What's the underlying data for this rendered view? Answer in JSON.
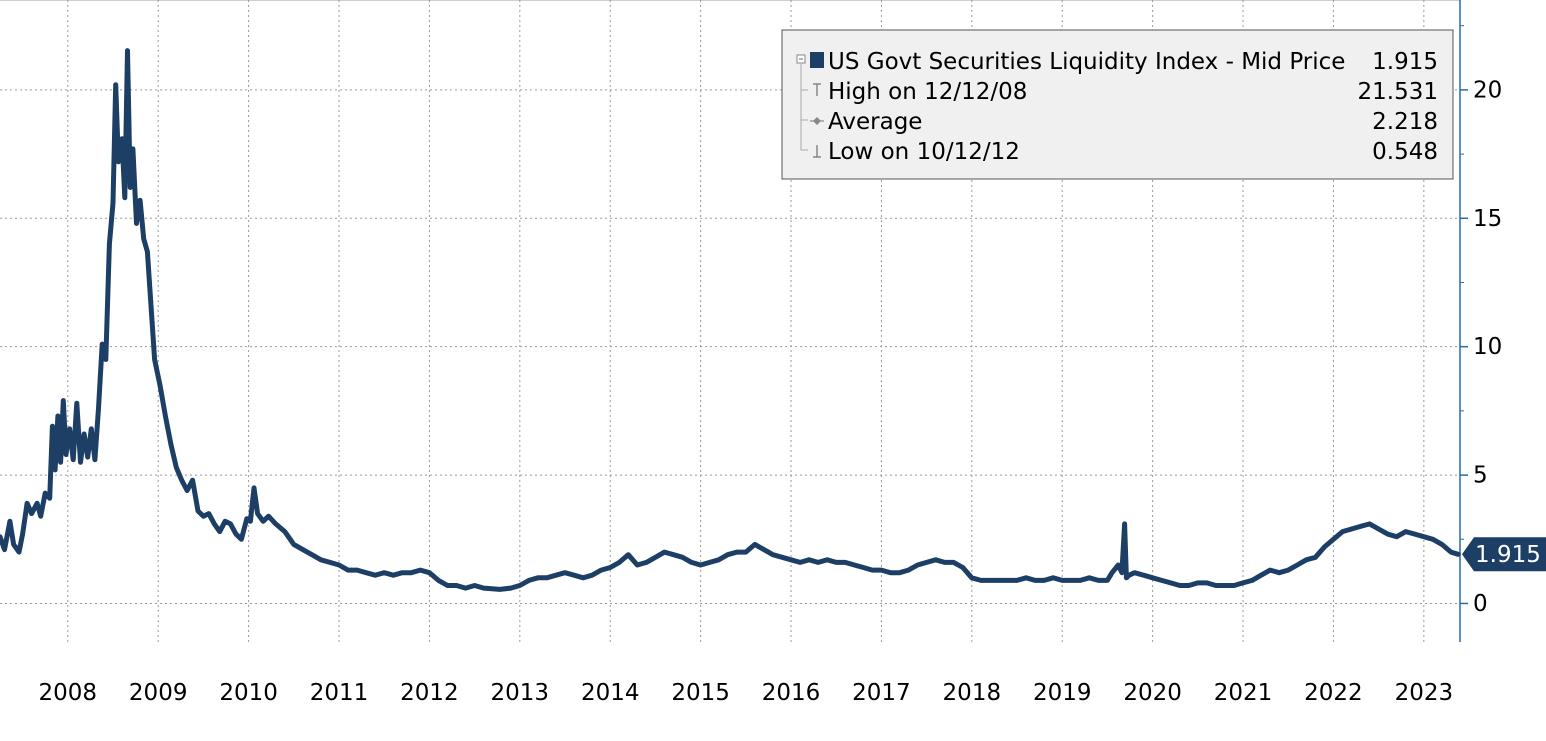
{
  "chart_data": {
    "type": "line",
    "title": "",
    "xlabel": "",
    "ylabel": "",
    "x_ticks": [
      "2008",
      "2009",
      "2010",
      "2011",
      "2012",
      "2013",
      "2014",
      "2015",
      "2016",
      "2017",
      "2018",
      "2019",
      "2020",
      "2021",
      "2022",
      "2023"
    ],
    "y_ticks": [
      "0",
      "5",
      "10",
      "15",
      "20"
    ],
    "ylim": [
      -1.5,
      23.5
    ],
    "xlim": [
      2007.25,
      2023.4
    ],
    "grid": true,
    "legend_position": "top-right",
    "colors": {
      "series": "#1d3f66",
      "grid": "#9a9a9a",
      "axis": "#2a6aa8",
      "legend_bg": "#f0f0f0",
      "legend_border": "#555555"
    },
    "series": [
      {
        "name": "US Govt Securities Liquidity Index - Mid Price",
        "last_value": "1.915",
        "points": [
          [
            2007.25,
            2.6
          ],
          [
            2007.3,
            2.1
          ],
          [
            2007.36,
            3.2
          ],
          [
            2007.4,
            2.3
          ],
          [
            2007.46,
            2.0
          ],
          [
            2007.5,
            2.7
          ],
          [
            2007.55,
            3.9
          ],
          [
            2007.6,
            3.5
          ],
          [
            2007.66,
            3.9
          ],
          [
            2007.7,
            3.4
          ],
          [
            2007.75,
            4.3
          ],
          [
            2007.8,
            4.1
          ],
          [
            2007.83,
            6.9
          ],
          [
            2007.86,
            5.2
          ],
          [
            2007.89,
            7.3
          ],
          [
            2007.92,
            5.5
          ],
          [
            2007.95,
            7.9
          ],
          [
            2007.98,
            5.8
          ],
          [
            2008.02,
            6.8
          ],
          [
            2008.06,
            5.6
          ],
          [
            2008.1,
            7.8
          ],
          [
            2008.14,
            5.5
          ],
          [
            2008.18,
            6.6
          ],
          [
            2008.22,
            5.7
          ],
          [
            2008.26,
            6.8
          ],
          [
            2008.3,
            5.6
          ],
          [
            2008.34,
            7.6
          ],
          [
            2008.38,
            10.1
          ],
          [
            2008.42,
            9.5
          ],
          [
            2008.46,
            14.0
          ],
          [
            2008.5,
            15.6
          ],
          [
            2008.53,
            20.2
          ],
          [
            2008.56,
            17.2
          ],
          [
            2008.6,
            18.1
          ],
          [
            2008.63,
            15.8
          ],
          [
            2008.66,
            21.531
          ],
          [
            2008.69,
            16.2
          ],
          [
            2008.72,
            17.7
          ],
          [
            2008.76,
            14.8
          ],
          [
            2008.8,
            15.7
          ],
          [
            2008.84,
            14.2
          ],
          [
            2008.88,
            13.7
          ],
          [
            2008.92,
            11.6
          ],
          [
            2008.96,
            9.5
          ],
          [
            2009.02,
            8.5
          ],
          [
            2009.08,
            7.3
          ],
          [
            2009.14,
            6.2
          ],
          [
            2009.2,
            5.3
          ],
          [
            2009.26,
            4.8
          ],
          [
            2009.32,
            4.4
          ],
          [
            2009.38,
            4.8
          ],
          [
            2009.44,
            3.6
          ],
          [
            2009.5,
            3.4
          ],
          [
            2009.56,
            3.5
          ],
          [
            2009.62,
            3.1
          ],
          [
            2009.68,
            2.8
          ],
          [
            2009.74,
            3.2
          ],
          [
            2009.8,
            3.1
          ],
          [
            2009.86,
            2.7
          ],
          [
            2009.92,
            2.5
          ],
          [
            2009.98,
            3.3
          ],
          [
            2010.02,
            3.2
          ],
          [
            2010.06,
            4.5
          ],
          [
            2010.1,
            3.5
          ],
          [
            2010.16,
            3.2
          ],
          [
            2010.22,
            3.4
          ],
          [
            2010.3,
            3.1
          ],
          [
            2010.4,
            2.8
          ],
          [
            2010.5,
            2.3
          ],
          [
            2010.6,
            2.1
          ],
          [
            2010.7,
            1.9
          ],
          [
            2010.8,
            1.7
          ],
          [
            2010.9,
            1.6
          ],
          [
            2011.0,
            1.5
          ],
          [
            2011.1,
            1.3
          ],
          [
            2011.2,
            1.3
          ],
          [
            2011.3,
            1.2
          ],
          [
            2011.4,
            1.1
          ],
          [
            2011.5,
            1.2
          ],
          [
            2011.6,
            1.1
          ],
          [
            2011.7,
            1.2
          ],
          [
            2011.8,
            1.2
          ],
          [
            2011.9,
            1.3
          ],
          [
            2012.0,
            1.2
          ],
          [
            2012.1,
            0.9
          ],
          [
            2012.2,
            0.7
          ],
          [
            2012.3,
            0.7
          ],
          [
            2012.4,
            0.6
          ],
          [
            2012.5,
            0.7
          ],
          [
            2012.6,
            0.6
          ],
          [
            2012.78,
            0.548
          ],
          [
            2012.9,
            0.6
          ],
          [
            2013.0,
            0.7
          ],
          [
            2013.1,
            0.9
          ],
          [
            2013.2,
            1.0
          ],
          [
            2013.3,
            1.0
          ],
          [
            2013.4,
            1.1
          ],
          [
            2013.5,
            1.2
          ],
          [
            2013.6,
            1.1
          ],
          [
            2013.7,
            1.0
          ],
          [
            2013.8,
            1.1
          ],
          [
            2013.9,
            1.3
          ],
          [
            2014.0,
            1.4
          ],
          [
            2014.1,
            1.6
          ],
          [
            2014.2,
            1.9
          ],
          [
            2014.3,
            1.5
          ],
          [
            2014.4,
            1.6
          ],
          [
            2014.5,
            1.8
          ],
          [
            2014.6,
            2.0
          ],
          [
            2014.7,
            1.9
          ],
          [
            2014.8,
            1.8
          ],
          [
            2014.9,
            1.6
          ],
          [
            2015.0,
            1.5
          ],
          [
            2015.1,
            1.6
          ],
          [
            2015.2,
            1.7
          ],
          [
            2015.3,
            1.9
          ],
          [
            2015.4,
            2.0
          ],
          [
            2015.5,
            2.0
          ],
          [
            2015.6,
            2.3
          ],
          [
            2015.7,
            2.1
          ],
          [
            2015.8,
            1.9
          ],
          [
            2016.0,
            1.7
          ],
          [
            2016.1,
            1.6
          ],
          [
            2016.2,
            1.7
          ],
          [
            2016.3,
            1.6
          ],
          [
            2016.4,
            1.7
          ],
          [
            2016.5,
            1.6
          ],
          [
            2016.6,
            1.6
          ],
          [
            2016.7,
            1.5
          ],
          [
            2016.8,
            1.4
          ],
          [
            2016.9,
            1.3
          ],
          [
            2017.0,
            1.3
          ],
          [
            2017.1,
            1.2
          ],
          [
            2017.2,
            1.2
          ],
          [
            2017.3,
            1.3
          ],
          [
            2017.4,
            1.5
          ],
          [
            2017.5,
            1.6
          ],
          [
            2017.6,
            1.7
          ],
          [
            2017.7,
            1.6
          ],
          [
            2017.8,
            1.6
          ],
          [
            2017.9,
            1.4
          ],
          [
            2018.0,
            1.0
          ],
          [
            2018.1,
            0.9
          ],
          [
            2018.2,
            0.9
          ],
          [
            2018.3,
            0.9
          ],
          [
            2018.4,
            0.9
          ],
          [
            2018.5,
            0.9
          ],
          [
            2018.6,
            1.0
          ],
          [
            2018.7,
            0.9
          ],
          [
            2018.8,
            0.9
          ],
          [
            2018.9,
            1.0
          ],
          [
            2019.0,
            0.9
          ],
          [
            2019.1,
            0.9
          ],
          [
            2019.2,
            0.9
          ],
          [
            2019.3,
            1.0
          ],
          [
            2019.4,
            0.9
          ],
          [
            2019.5,
            0.9
          ],
          [
            2019.55,
            1.2
          ],
          [
            2019.62,
            1.5
          ],
          [
            2019.66,
            1.2
          ],
          [
            2019.69,
            3.1
          ],
          [
            2019.71,
            1.0
          ],
          [
            2019.74,
            1.1
          ],
          [
            2019.8,
            1.2
          ],
          [
            2019.9,
            1.1
          ],
          [
            2020.0,
            1.0
          ],
          [
            2020.1,
            0.9
          ],
          [
            2020.2,
            0.8
          ],
          [
            2020.3,
            0.7
          ],
          [
            2020.4,
            0.7
          ],
          [
            2020.5,
            0.8
          ],
          [
            2020.6,
            0.8
          ],
          [
            2020.7,
            0.7
          ],
          [
            2020.8,
            0.7
          ],
          [
            2020.9,
            0.7
          ],
          [
            2021.0,
            0.8
          ],
          [
            2021.1,
            0.9
          ],
          [
            2021.2,
            1.1
          ],
          [
            2021.3,
            1.3
          ],
          [
            2021.4,
            1.2
          ],
          [
            2021.5,
            1.3
          ],
          [
            2021.6,
            1.5
          ],
          [
            2021.7,
            1.7
          ],
          [
            2021.8,
            1.8
          ],
          [
            2021.9,
            2.2
          ],
          [
            2022.0,
            2.5
          ],
          [
            2022.1,
            2.8
          ],
          [
            2022.2,
            2.9
          ],
          [
            2022.3,
            3.0
          ],
          [
            2022.4,
            3.1
          ],
          [
            2022.5,
            2.9
          ],
          [
            2022.6,
            2.7
          ],
          [
            2022.7,
            2.6
          ],
          [
            2022.8,
            2.8
          ],
          [
            2022.9,
            2.7
          ],
          [
            2023.0,
            2.6
          ],
          [
            2023.1,
            2.5
          ],
          [
            2023.2,
            2.3
          ],
          [
            2023.3,
            2.0
          ],
          [
            2023.38,
            1.915
          ]
        ]
      }
    ],
    "legend": {
      "title_label": "US Govt Securities Liquidity Index - Mid Price",
      "title_value": "1.915",
      "rows": [
        {
          "label": "High on 12/12/08",
          "value": "21.531",
          "marker": "high-marker-icon"
        },
        {
          "label": "Average",
          "value": "2.218",
          "marker": "average-marker-icon"
        },
        {
          "label": "Low on 10/12/12",
          "value": "0.548",
          "marker": "low-marker-icon"
        }
      ]
    }
  }
}
